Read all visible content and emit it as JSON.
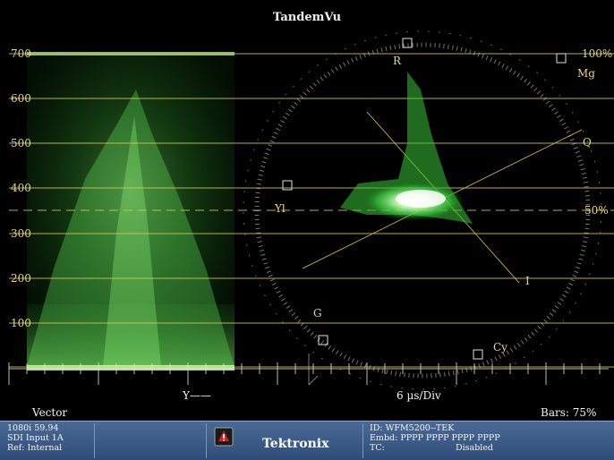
{
  "scope": {
    "app_title": "TandemVu",
    "waveform_scale": [
      "700",
      "600",
      "500",
      "400",
      "300",
      "200",
      "100"
    ],
    "waveform_trace": "Y",
    "time_division": "6 µs/Div",
    "vector_label": "Vector",
    "bars_label": "Bars: 75%",
    "vector_targets": {
      "r": "R",
      "mg": "Mg",
      "yl": "Yl",
      "g": "G",
      "cy": "Cy",
      "q": "Q",
      "i": "I",
      "pct_100": "100%",
      "pct_50": "50%"
    },
    "colors": {
      "trace_green": "#7dff6a",
      "graticule_yellow": "#d9c84a",
      "label_yellow": "#e8d87a",
      "status_bar": "#3c5a86"
    }
  },
  "status": {
    "format": "1080i 59.94",
    "input": "SDI Input 1A",
    "ref": "Ref: Internal",
    "brand": "Tektronix",
    "id": "ID: WFM5200--TEK",
    "embd": "Embd: PPPP PPPP PPPP PPPP",
    "tc_label": "TC:",
    "tc_value": "Disabled"
  }
}
